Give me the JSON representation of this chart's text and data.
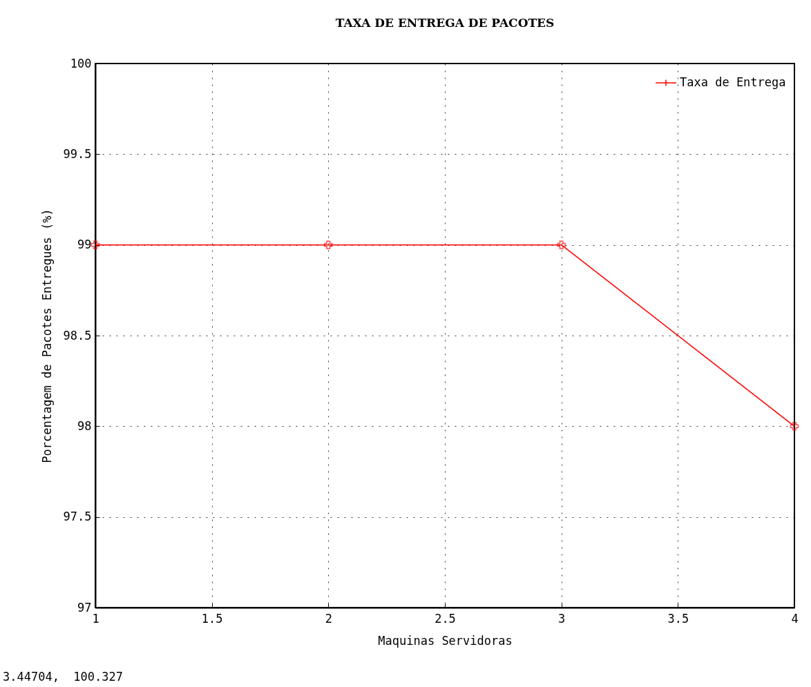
{
  "chart_data": {
    "type": "line",
    "title": "TAXA DE ENTREGA DE PACOTES",
    "xlabel": "Maquinas Servidoras",
    "ylabel": "Porcentagem de Pacotes Entregues (%)",
    "x": [
      1,
      2,
      3,
      4
    ],
    "series": [
      {
        "name": "Taxa de Entrega",
        "color": "#ff0000",
        "values": [
          99,
          99,
          99,
          98
        ]
      }
    ],
    "xlim": [
      1,
      4
    ],
    "xticks": [
      1,
      1.5,
      2,
      2.5,
      3,
      3.5,
      4
    ],
    "ylim": [
      97,
      100
    ],
    "yticks": [
      97,
      97.5,
      98,
      98.5,
      99,
      99.5,
      100
    ],
    "grid": true,
    "legend": "top right",
    "marker": "cross",
    "line_style": "solid",
    "annotations": [
      "3.44704,  100.327"
    ]
  }
}
